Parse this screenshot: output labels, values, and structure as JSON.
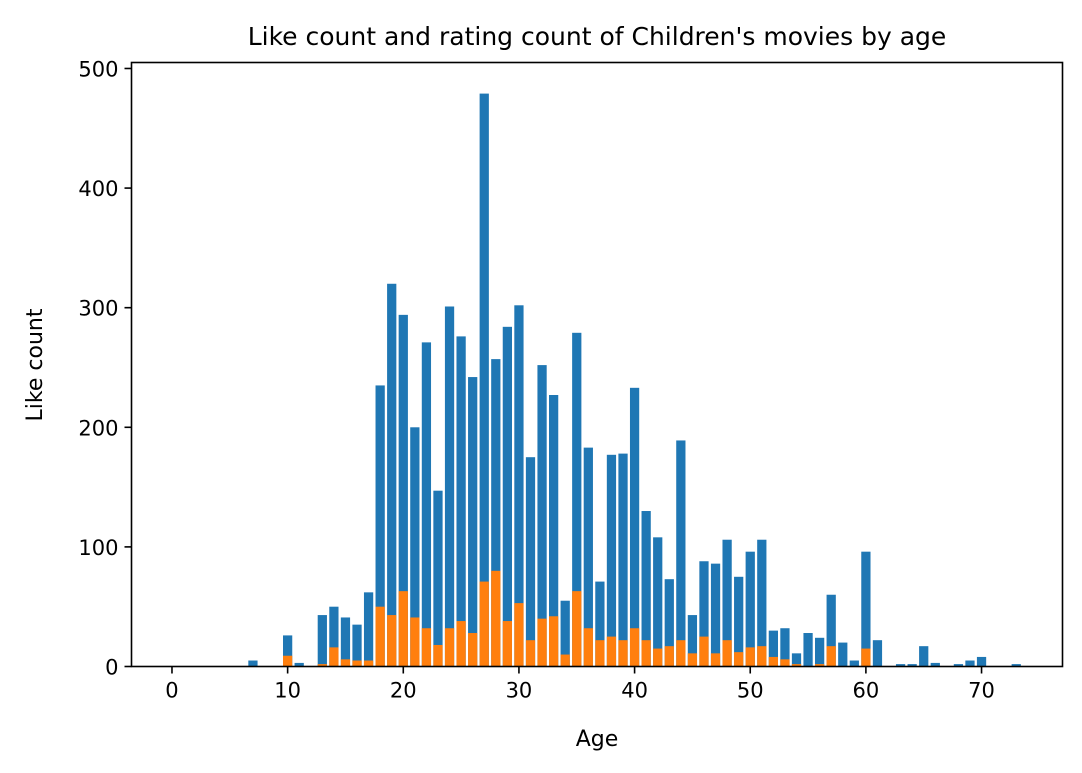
{
  "chart_data": {
    "type": "bar",
    "title": "Like count and rating count of Children's movies by age",
    "xlabel": "Age",
    "ylabel": "Like count",
    "xlim": [
      -3.5,
      77
    ],
    "ylim": [
      0,
      505
    ],
    "xticks": [
      0,
      10,
      20,
      30,
      40,
      50,
      60,
      70
    ],
    "yticks": [
      0,
      100,
      200,
      300,
      400,
      500
    ],
    "grid": false,
    "bar_width": 0.8,
    "series": [
      {
        "color": "#1f77b4",
        "points": [
          [
            7,
            5
          ],
          [
            10,
            26
          ],
          [
            11,
            3
          ],
          [
            13,
            43
          ],
          [
            14,
            50
          ],
          [
            15,
            41
          ],
          [
            16,
            35
          ],
          [
            17,
            62
          ],
          [
            18,
            235
          ],
          [
            19,
            320
          ],
          [
            20,
            294
          ],
          [
            21,
            200
          ],
          [
            22,
            271
          ],
          [
            23,
            147
          ],
          [
            24,
            301
          ],
          [
            25,
            276
          ],
          [
            26,
            242
          ],
          [
            27,
            479
          ],
          [
            28,
            257
          ],
          [
            29,
            284
          ],
          [
            30,
            302
          ],
          [
            31,
            175
          ],
          [
            32,
            252
          ],
          [
            33,
            227
          ],
          [
            34,
            55
          ],
          [
            35,
            279
          ],
          [
            36,
            183
          ],
          [
            37,
            71
          ],
          [
            38,
            177
          ],
          [
            39,
            178
          ],
          [
            40,
            233
          ],
          [
            41,
            130
          ],
          [
            42,
            108
          ],
          [
            43,
            73
          ],
          [
            44,
            189
          ],
          [
            45,
            43
          ],
          [
            46,
            88
          ],
          [
            47,
            86
          ],
          [
            48,
            106
          ],
          [
            49,
            75
          ],
          [
            50,
            96
          ],
          [
            51,
            106
          ],
          [
            52,
            30
          ],
          [
            53,
            32
          ],
          [
            54,
            11
          ],
          [
            55,
            28
          ],
          [
            56,
            24
          ],
          [
            57,
            60
          ],
          [
            58,
            20
          ],
          [
            59,
            5
          ],
          [
            60,
            96
          ],
          [
            61,
            22
          ],
          [
            63,
            2
          ],
          [
            64,
            2
          ],
          [
            65,
            17
          ],
          [
            66,
            3
          ],
          [
            68,
            2
          ],
          [
            69,
            5
          ],
          [
            70,
            8
          ],
          [
            73,
            2
          ]
        ]
      },
      {
        "color": "#ff7f0e",
        "points": [
          [
            10,
            9
          ],
          [
            13,
            2
          ],
          [
            14,
            16
          ],
          [
            15,
            6
          ],
          [
            16,
            5
          ],
          [
            17,
            5
          ],
          [
            18,
            50
          ],
          [
            19,
            43
          ],
          [
            20,
            63
          ],
          [
            21,
            41
          ],
          [
            22,
            32
          ],
          [
            23,
            18
          ],
          [
            24,
            32
          ],
          [
            25,
            38
          ],
          [
            26,
            28
          ],
          [
            27,
            71
          ],
          [
            28,
            80
          ],
          [
            29,
            38
          ],
          [
            30,
            53
          ],
          [
            31,
            22
          ],
          [
            32,
            40
          ],
          [
            33,
            42
          ],
          [
            34,
            10
          ],
          [
            35,
            63
          ],
          [
            36,
            32
          ],
          [
            37,
            22
          ],
          [
            38,
            25
          ],
          [
            39,
            22
          ],
          [
            40,
            32
          ],
          [
            41,
            22
          ],
          [
            42,
            15
          ],
          [
            43,
            17
          ],
          [
            44,
            22
          ],
          [
            45,
            11
          ],
          [
            46,
            25
          ],
          [
            47,
            11
          ],
          [
            48,
            22
          ],
          [
            49,
            12
          ],
          [
            50,
            16
          ],
          [
            51,
            17
          ],
          [
            52,
            8
          ],
          [
            53,
            6
          ],
          [
            54,
            2
          ],
          [
            56,
            2
          ],
          [
            57,
            17
          ],
          [
            60,
            15
          ]
        ]
      }
    ]
  }
}
